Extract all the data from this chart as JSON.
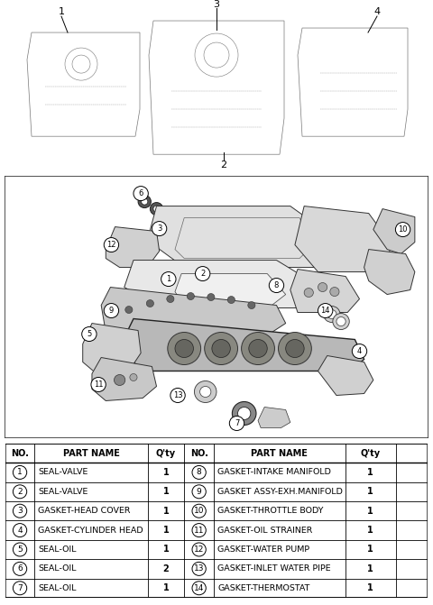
{
  "bg_color": "#ffffff",
  "parts_left": [
    {
      "no": 1,
      "name": "SEAL-VALVE",
      "qty": "1"
    },
    {
      "no": 2,
      "name": "SEAL-VALVE",
      "qty": "1"
    },
    {
      "no": 3,
      "name": "GASKET-HEAD COVER",
      "qty": "1"
    },
    {
      "no": 4,
      "name": "GASKET-CYLINDER HEAD",
      "qty": "1"
    },
    {
      "no": 5,
      "name": "SEAL-OIL",
      "qty": "1"
    },
    {
      "no": 6,
      "name": "SEAL-OIL",
      "qty": "2"
    },
    {
      "no": 7,
      "name": "SEAL-OIL",
      "qty": "1"
    }
  ],
  "parts_right": [
    {
      "no": 8,
      "name": "GASKET-INTAKE MANIFOLD",
      "qty": "1"
    },
    {
      "no": 9,
      "name": "GASKET ASSY-EXH.MANIFOLD",
      "qty": "1"
    },
    {
      "no": 10,
      "name": "GASKET-THROTTLE BODY",
      "qty": "1"
    },
    {
      "no": 11,
      "name": "GASKET-OIL STRAINER",
      "qty": "1"
    },
    {
      "no": 12,
      "name": "GASKET-WATER PUMP",
      "qty": "1"
    },
    {
      "no": 13,
      "name": "GASKET-INLET WATER PIPE",
      "qty": "1"
    },
    {
      "no": 14,
      "name": "GASKET-THERMOSTAT",
      "qty": "1"
    }
  ]
}
